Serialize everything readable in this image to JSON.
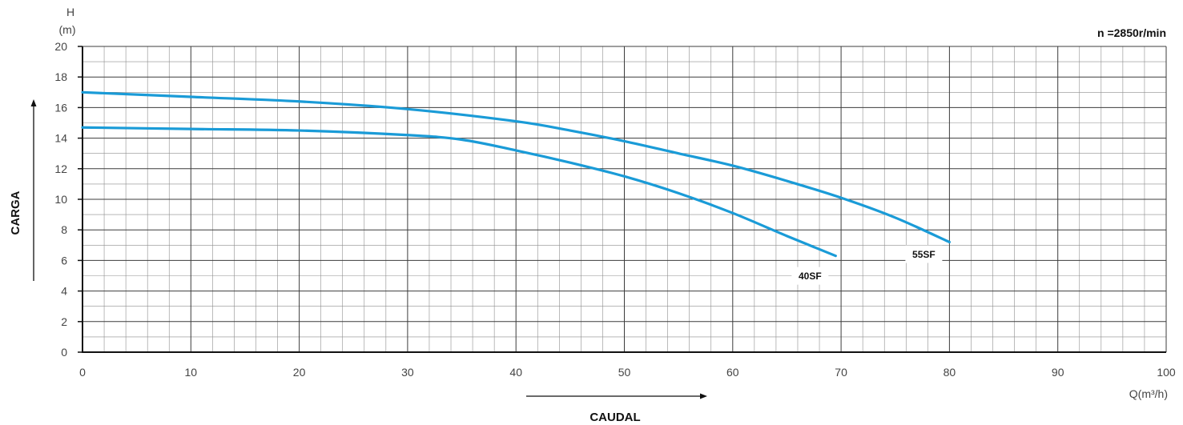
{
  "chart_data": {
    "type": "line",
    "speed_label": "n =2850r/min",
    "y_unit_line1": "H",
    "y_unit_line2": "(m)",
    "x_unit": "Q(m³/h)",
    "ylabel": "CARGA",
    "xlabel": "CAUDAL",
    "xlim": [
      0,
      100
    ],
    "ylim": [
      0,
      20
    ],
    "x_ticks": [
      0,
      10,
      20,
      30,
      40,
      50,
      60,
      70,
      80,
      90,
      100
    ],
    "y_ticks": [
      0,
      2,
      4,
      6,
      8,
      10,
      12,
      14,
      16,
      18,
      20
    ],
    "grid": true,
    "line_color": "#1a9bd7",
    "series": [
      {
        "name": "55SF",
        "x": [
          0,
          10,
          20,
          30,
          40,
          45,
          50,
          55,
          60,
          65,
          70,
          75,
          80
        ],
        "y": [
          17.0,
          16.7,
          16.4,
          15.9,
          15.1,
          14.5,
          13.8,
          13.0,
          12.2,
          11.2,
          10.1,
          8.8,
          7.2
        ]
      },
      {
        "name": "40SF",
        "x": [
          0,
          10,
          20,
          30,
          35,
          40,
          45,
          50,
          55,
          60,
          65,
          69.5
        ],
        "y": [
          14.7,
          14.6,
          14.5,
          14.2,
          13.9,
          13.2,
          12.4,
          11.5,
          10.4,
          9.1,
          7.6,
          6.3
        ]
      }
    ]
  }
}
